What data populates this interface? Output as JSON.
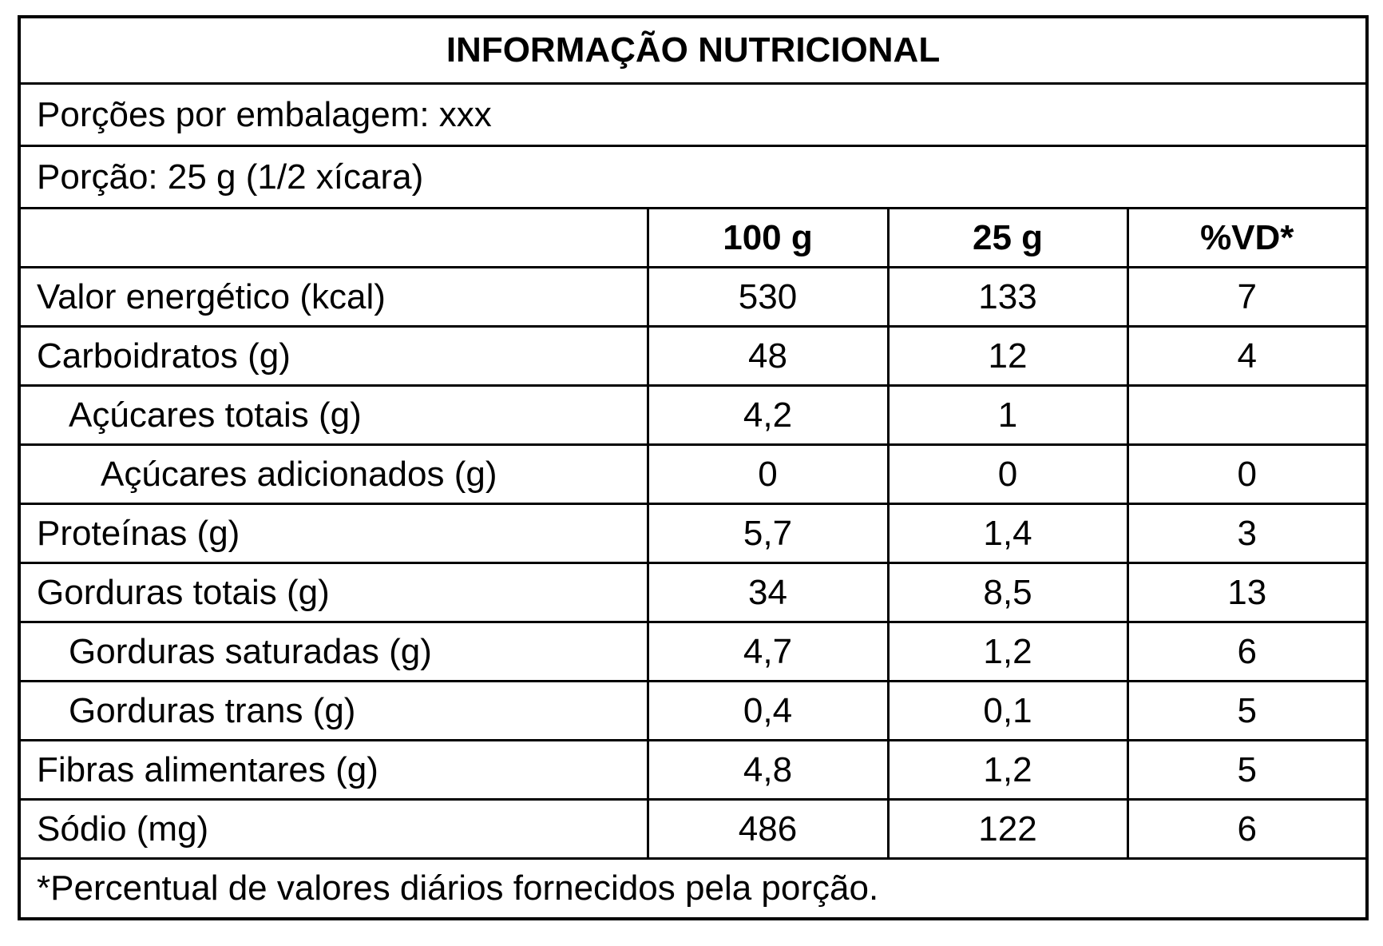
{
  "title": "INFORMAÇÃO NUTRICIONAL",
  "servings_per_package": "Porções por embalagem: xxx",
  "serving_size": "Porção: 25 g (1/2 xícara)",
  "columns": [
    "",
    "100 g",
    "25 g",
    "%VD*"
  ],
  "rows": [
    {
      "name": "Valor energético (kcal)",
      "indent": 0,
      "per100": "530",
      "perPortion": "133",
      "dv": "7"
    },
    {
      "name": "Carboidratos (g)",
      "indent": 0,
      "per100": "48",
      "perPortion": "12",
      "dv": "4"
    },
    {
      "name": "Açúcares totais (g)",
      "indent": 1,
      "per100": "4,2",
      "perPortion": "1",
      "dv": ""
    },
    {
      "name": "Açúcares adicionados (g)",
      "indent": 2,
      "per100": "0",
      "perPortion": "0",
      "dv": "0"
    },
    {
      "name": "Proteínas (g)",
      "indent": 0,
      "per100": "5,7",
      "perPortion": "1,4",
      "dv": "3"
    },
    {
      "name": "Gorduras totais (g)",
      "indent": 0,
      "per100": "34",
      "perPortion": "8,5",
      "dv": "13"
    },
    {
      "name": "Gorduras saturadas (g)",
      "indent": 1,
      "per100": "4,7",
      "perPortion": "1,2",
      "dv": "6"
    },
    {
      "name": "Gorduras trans (g)",
      "indent": 1,
      "per100": "0,4",
      "perPortion": "0,1",
      "dv": "5"
    },
    {
      "name": "Fibras alimentares (g)",
      "indent": 0,
      "per100": "4,8",
      "perPortion": "1,2",
      "dv": "5"
    },
    {
      "name": "Sódio (mg)",
      "indent": 0,
      "per100": "486",
      "perPortion": "122",
      "dv": "6"
    }
  ],
  "footnote": "*Percentual de valores diários fornecidos pela porção."
}
